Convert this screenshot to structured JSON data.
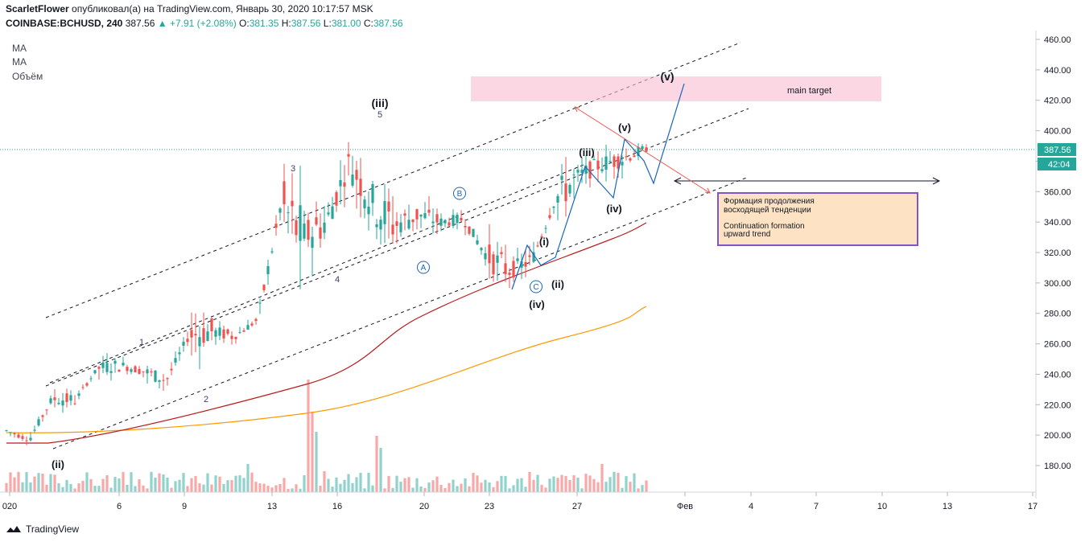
{
  "header": {
    "author": "ScarletFlower",
    "published": "опубликовал(а) на TradingView.com, Январь 30, 2020 10:17:57 MSK",
    "symbol": "COINBASE:BCHUSD, 240",
    "last": "387.56",
    "change": "▲ +7.91 (+2.08%)",
    "o_label": "O:",
    "o": "381.35",
    "h_label": "H:",
    "h": "387.56",
    "l_label": "L:",
    "l": "381.00",
    "c_label": "C:",
    "c": "387.56"
  },
  "indicators": [
    "MA",
    "MA",
    "Объём"
  ],
  "footer": {
    "brand": "TradingView"
  },
  "chart_data": {
    "type": "candlestick",
    "price_axis": [
      "460.00",
      "440.00",
      "420.00",
      "400.00",
      "380.00",
      "360.00",
      "340.00",
      "320.00",
      "300.00",
      "280.00",
      "260.00",
      "240.00",
      "220.00",
      "200.00",
      "180.00"
    ],
    "ylim": [
      160,
      466
    ],
    "last_price_label": "387.56",
    "countdown_label": "42:04",
    "time_axis": [
      "020",
      "6",
      "9",
      "13",
      "16",
      "20",
      "23",
      "27",
      "Фев",
      "4",
      "7",
      "10",
      "13",
      "17"
    ],
    "annotations": {
      "main_target": "main target",
      "note_ru_1": "Формация продолжения",
      "note_ru_2": "восходящей тенденции",
      "note_en_1": "Continuation formation",
      "note_en_2": "upward trend",
      "waves": [
        "(ii)",
        "1",
        "2",
        "3",
        "4",
        "5",
        "(iii)",
        "A",
        "B",
        "C",
        "(iv)",
        "(i)",
        "(ii)",
        "(iii)",
        "(iv)",
        "(v)",
        "(v)"
      ]
    },
    "colors": {
      "up": "#26a69a",
      "down": "#ef5350",
      "ma_slow": "#ff9800",
      "ma_fast": "#b71c1c",
      "wave": "#1565c0",
      "target": "#f8bbd0",
      "note_bg": "#fde3c4",
      "note_border": "#7e57c2",
      "price_line": "#26a69a"
    },
    "candles_ohlc_anchors": [
      {
        "x": "02",
        "o": 205,
        "h": 207,
        "l": 200,
        "c": 203
      },
      {
        "x": "03",
        "o": 196,
        "h": 200,
        "l": 190,
        "c": 197
      },
      {
        "x": "04",
        "o": 215,
        "h": 228,
        "l": 210,
        "c": 224
      },
      {
        "x": "05",
        "o": 224,
        "h": 226,
        "l": 220,
        "c": 223
      },
      {
        "x": "06",
        "o": 236,
        "h": 248,
        "l": 230,
        "c": 244
      },
      {
        "x": "07",
        "o": 245,
        "h": 252,
        "l": 240,
        "c": 246
      },
      {
        "x": "08",
        "o": 244,
        "h": 256,
        "l": 238,
        "c": 242
      },
      {
        "x": "09",
        "o": 240,
        "h": 244,
        "l": 232,
        "c": 236
      },
      {
        "x": "10",
        "o": 238,
        "h": 270,
        "l": 232,
        "c": 266
      },
      {
        "x": "11",
        "o": 270,
        "h": 280,
        "l": 262,
        "c": 268
      },
      {
        "x": "12",
        "o": 264,
        "h": 270,
        "l": 260,
        "c": 265
      },
      {
        "x": "13",
        "o": 266,
        "h": 280,
        "l": 262,
        "c": 276
      },
      {
        "x": "14",
        "o": 290,
        "h": 370,
        "l": 284,
        "c": 350
      },
      {
        "x": "15",
        "o": 345,
        "h": 360,
        "l": 312,
        "c": 330
      },
      {
        "x": "16",
        "o": 330,
        "h": 352,
        "l": 318,
        "c": 340
      },
      {
        "x": "17",
        "o": 350,
        "h": 390,
        "l": 340,
        "c": 380
      },
      {
        "x": "18",
        "o": 385,
        "h": 405,
        "l": 345,
        "c": 352
      },
      {
        "x": "19",
        "o": 345,
        "h": 358,
        "l": 325,
        "c": 338
      },
      {
        "x": "20",
        "o": 338,
        "h": 352,
        "l": 328,
        "c": 345
      },
      {
        "x": "21",
        "o": 344,
        "h": 350,
        "l": 335,
        "c": 340
      },
      {
        "x": "22",
        "o": 345,
        "h": 350,
        "l": 335,
        "c": 342
      },
      {
        "x": "23",
        "o": 340,
        "h": 348,
        "l": 310,
        "c": 318
      },
      {
        "x": "24",
        "o": 318,
        "h": 325,
        "l": 302,
        "c": 308
      },
      {
        "x": "25",
        "o": 310,
        "h": 322,
        "l": 305,
        "c": 315
      },
      {
        "x": "26",
        "o": 318,
        "h": 360,
        "l": 312,
        "c": 355
      },
      {
        "x": "27",
        "o": 365,
        "h": 378,
        "l": 355,
        "c": 370
      },
      {
        "x": "28",
        "o": 360,
        "h": 380,
        "l": 356,
        "c": 378
      },
      {
        "x": "29",
        "o": 385,
        "h": 395,
        "l": 378,
        "c": 382
      },
      {
        "x": "30",
        "o": 381.35,
        "h": 387.56,
        "l": 381,
        "c": 387.56
      }
    ]
  }
}
